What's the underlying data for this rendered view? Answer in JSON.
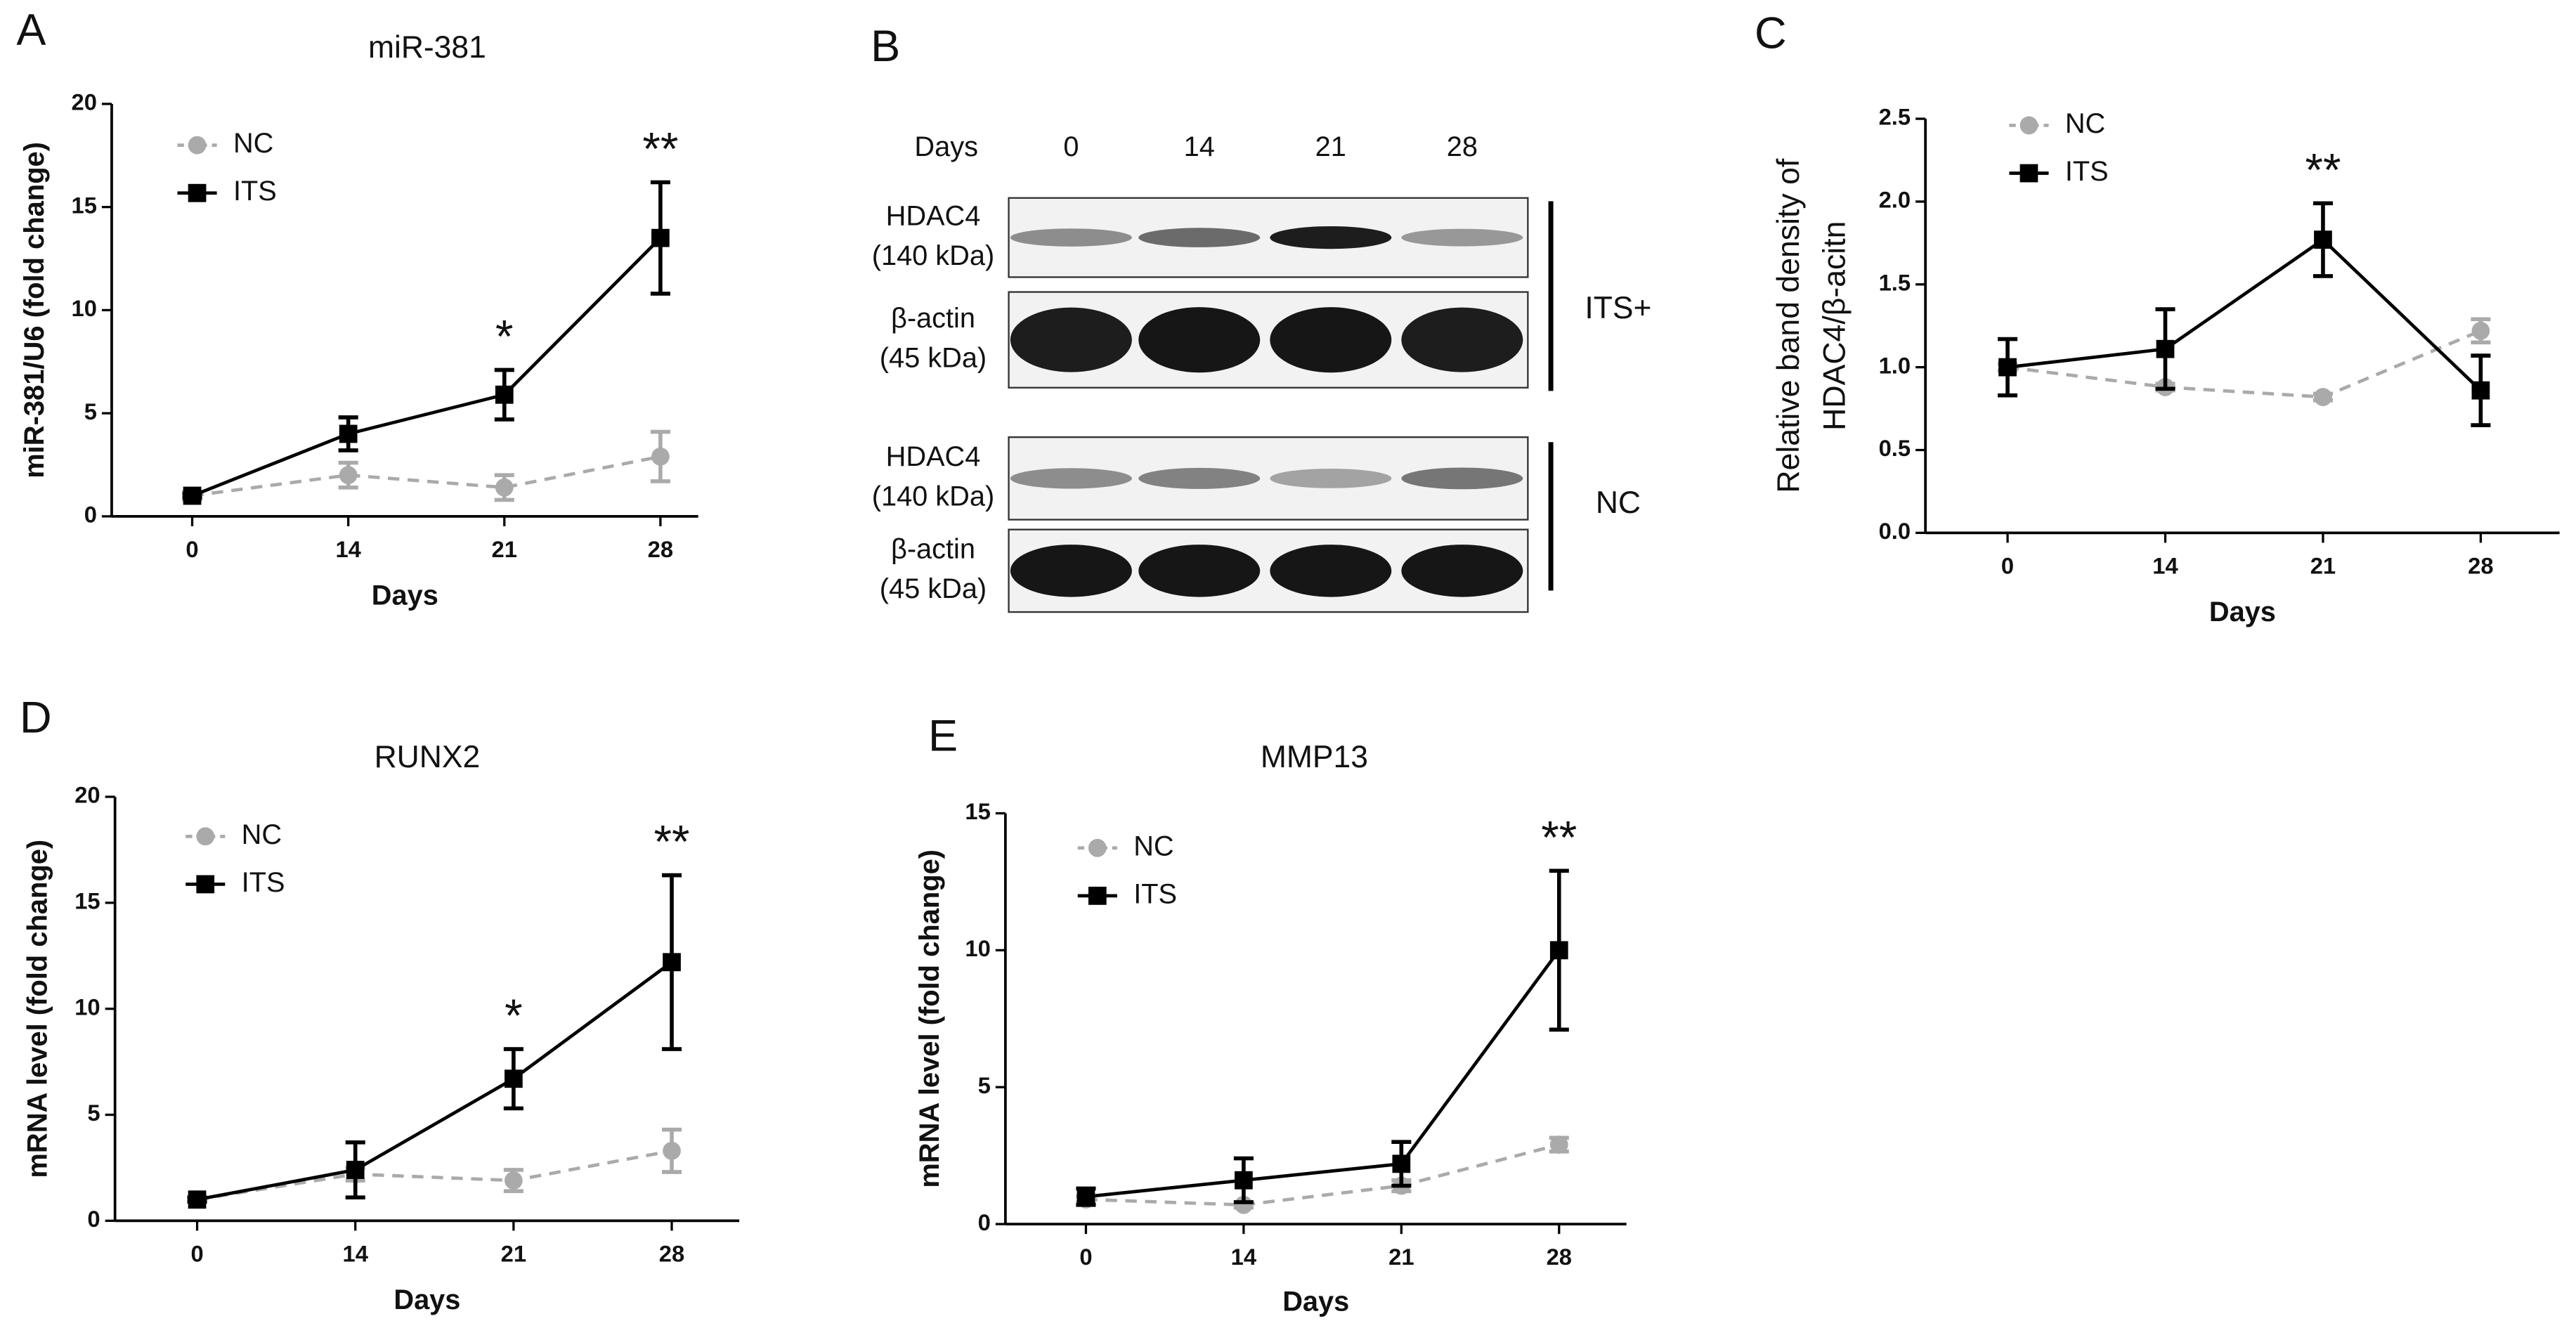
{
  "chart_data": [
    {
      "type": "line",
      "panel": "A",
      "title": "miR-381",
      "ylabel": [
        "miR-381/U6 (fold change)"
      ],
      "xlabel": "Days",
      "categories": [
        "0",
        "14",
        "21",
        "28"
      ],
      "ylim": [
        0,
        20
      ],
      "yticks": [
        0,
        5,
        10,
        15,
        20
      ],
      "series": [
        {
          "name": "NC",
          "color": "#aaaaaa",
          "marker": "circle",
          "dashed": true,
          "values": [
            1,
            2,
            1.4,
            2.9
          ],
          "errors": [
            0.2,
            0.6,
            0.6,
            1.2
          ]
        },
        {
          "name": "ITS",
          "color": "#000000",
          "marker": "square",
          "dashed": false,
          "values": [
            1,
            4,
            5.9,
            13.5
          ],
          "errors": [
            0.1,
            0.8,
            1.2,
            2.7
          ],
          "significance": [
            null,
            null,
            "*",
            "**"
          ]
        }
      ]
    },
    {
      "type": "line",
      "panel": "C",
      "ylabel": [
        "Relative band density of",
        "HDAC4/β-acitn"
      ],
      "xlabel": "Days",
      "categories": [
        "0",
        "14",
        "21",
        "28"
      ],
      "ylim": [
        0,
        2.5
      ],
      "yticks": [
        {
          "value": 0,
          "label": "0.0"
        },
        0.5,
        {
          "value": 1,
          "label": "1.0"
        },
        1.5,
        {
          "value": 2,
          "label": "2.0"
        },
        2.5
      ],
      "series": [
        {
          "name": "NC",
          "color": "#aaaaaa",
          "marker": "circle",
          "dashed": true,
          "values": [
            1.0,
            0.88,
            0.82,
            1.22
          ],
          "errors": [
            0.02,
            0.02,
            0.02,
            0.07
          ]
        },
        {
          "name": "ITS",
          "color": "#000000",
          "marker": "square",
          "dashed": false,
          "values": [
            1.0,
            1.11,
            1.77,
            0.86
          ],
          "errors": [
            0.17,
            0.24,
            0.22,
            0.21
          ],
          "significance": [
            null,
            null,
            "**",
            null
          ]
        }
      ]
    },
    {
      "type": "line",
      "panel": "D",
      "title": "RUNX2",
      "ylabel": [
        "mRNA level (fold change)"
      ],
      "xlabel": "Days",
      "categories": [
        "0",
        "14",
        "21",
        "28"
      ],
      "ylim": [
        0,
        20
      ],
      "yticks": [
        0,
        5,
        10,
        15,
        20
      ],
      "series": [
        {
          "name": "NC",
          "color": "#aaaaaa",
          "marker": "circle",
          "dashed": true,
          "values": [
            1,
            2.2,
            1.9,
            3.3
          ],
          "errors": [
            0.1,
            0.3,
            0.5,
            1.0
          ]
        },
        {
          "name": "ITS",
          "color": "#000000",
          "marker": "square",
          "dashed": false,
          "values": [
            1,
            2.4,
            6.7,
            12.2
          ],
          "errors": [
            0.1,
            1.3,
            1.4,
            4.1
          ],
          "significance": [
            null,
            null,
            "*",
            "**"
          ]
        }
      ]
    },
    {
      "type": "line",
      "panel": "E",
      "title": "MMP13",
      "ylabel": [
        "mRNA level (fold change)"
      ],
      "xlabel": "Days",
      "categories": [
        "0",
        "14",
        "21",
        "28"
      ],
      "ylim": [
        0,
        15
      ],
      "yticks": [
        0,
        5,
        10,
        15
      ],
      "series": [
        {
          "name": "NC",
          "color": "#aaaaaa",
          "marker": "circle",
          "dashed": true,
          "values": [
            0.9,
            0.7,
            1.4,
            2.9
          ],
          "errors": [
            0.1,
            0.1,
            0.2,
            0.25
          ]
        },
        {
          "name": "ITS",
          "color": "#000000",
          "marker": "square",
          "dashed": false,
          "values": [
            1,
            1.6,
            2.2,
            10
          ],
          "errors": [
            0.3,
            0.8,
            0.8,
            2.9
          ],
          "significance": [
            null,
            null,
            null,
            "**"
          ]
        }
      ]
    }
  ],
  "blot": {
    "panel": "B",
    "header": "Days",
    "lanes": [
      "0",
      "14",
      "21",
      "28"
    ],
    "groups": [
      {
        "label": "ITS+",
        "rows": [
          {
            "protein": "HDAC4",
            "size": "(140 kDa)"
          },
          {
            "protein": "β-actin",
            "size": "(45 kDa)"
          }
        ]
      },
      {
        "label": "NC",
        "rows": [
          {
            "protein": "HDAC4",
            "size": "(140 kDa)"
          },
          {
            "protein": "β-actin",
            "size": "(45 kDa)"
          }
        ]
      }
    ]
  }
}
